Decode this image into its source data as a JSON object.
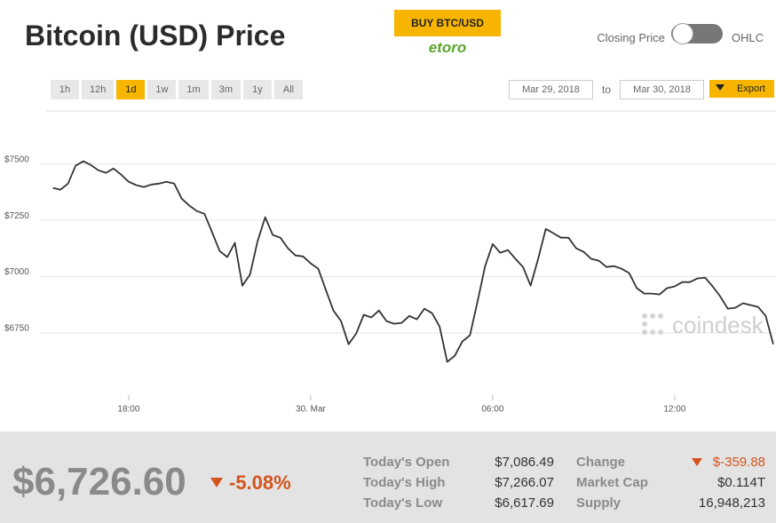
{
  "header": {
    "title": "Bitcoin (USD) Price",
    "buy_button": "BUY BTC/USD",
    "broker": "etoro",
    "toggle_left": "Closing Price",
    "toggle_right": "OHLC"
  },
  "toolbar": {
    "range_buttons": [
      {
        "label": "1h"
      },
      {
        "label": "12h"
      },
      {
        "label": "1d",
        "selected": true
      },
      {
        "label": "1w"
      },
      {
        "label": "1m"
      },
      {
        "label": "3m"
      },
      {
        "label": "1y"
      },
      {
        "label": "All"
      }
    ],
    "date_from": "Mar 29, 2018",
    "date_separator": "to",
    "date_to": "Mar 30, 2018",
    "export": "Export"
  },
  "watermark": "coindesk",
  "chart_data": {
    "type": "line",
    "color": "#333333",
    "grid": true,
    "x": [
      15.5,
      15.75,
      16,
      16.25,
      16.5,
      16.75,
      17,
      17.25,
      17.5,
      17.75,
      18,
      18.25,
      18.5,
      18.75,
      19,
      19.25,
      19.5,
      19.75,
      20,
      20.25,
      20.5,
      20.75,
      21,
      21.25,
      21.5,
      21.75,
      22,
      22.25,
      22.5,
      22.75,
      23,
      23.25,
      23.5,
      23.75,
      24,
      24.25,
      24.5,
      24.75,
      25,
      25.25,
      25.5,
      25.75,
      26,
      26.25,
      26.5,
      26.75,
      27,
      27.25,
      27.5,
      27.75,
      28,
      28.25,
      28.5,
      28.75,
      29,
      29.25,
      29.5,
      29.75,
      30,
      30.25,
      30.5,
      30.75,
      31,
      31.25,
      31.5,
      31.75,
      32,
      32.25,
      32.5,
      32.75,
      33,
      33.25,
      33.5,
      33.75,
      34,
      34.25,
      34.5,
      34.75,
      35,
      35.25,
      35.5,
      35.75,
      36,
      36.25,
      36.5,
      36.75,
      37,
      37.25,
      37.5,
      37.75,
      38,
      38.25,
      38.5,
      38.75,
      39,
      39.25
    ],
    "values": [
      7394,
      7386,
      7413,
      7492,
      7512,
      7496,
      7472,
      7461,
      7480,
      7453,
      7421,
      7406,
      7398,
      7409,
      7413,
      7421,
      7413,
      7346,
      7315,
      7291,
      7279,
      7197,
      7114,
      7087,
      7150,
      6960,
      7010,
      7157,
      7264,
      7185,
      7173,
      7126,
      7094,
      7090,
      7059,
      7035,
      6941,
      6850,
      6803,
      6700,
      6748,
      6831,
      6819,
      6850,
      6803,
      6791,
      6795,
      6826,
      6811,
      6858,
      6838,
      6779,
      6622,
      6649,
      6712,
      6740,
      6889,
      7047,
      7145,
      7106,
      7118,
      7079,
      7043,
      6960,
      7079,
      7212,
      7193,
      7173,
      7173,
      7126,
      7110,
      7079,
      7071,
      7043,
      7047,
      7035,
      7016,
      6949,
      6925,
      6925,
      6921,
      6949,
      6957,
      6976,
      6976,
      6992,
      6996,
      6957,
      6913,
      6858,
      6862,
      6882,
      6874,
      6866,
      6826,
      6700
    ],
    "xlim": [
      15.28,
      39.34
    ],
    "xticks": [
      {
        "value": 18,
        "label": "18:00"
      },
      {
        "value": 24,
        "label": "30. Mar"
      },
      {
        "value": 30,
        "label": "06:00"
      },
      {
        "value": 36,
        "label": "12:00"
      }
    ],
    "ylim": [
      6500,
      7680
    ],
    "yticks": [
      {
        "value": 6750,
        "label": "$6750"
      },
      {
        "value": 7000,
        "label": "$7000"
      },
      {
        "value": 7250,
        "label": "$7250"
      },
      {
        "value": 7500,
        "label": "$7500"
      }
    ]
  },
  "summary": {
    "price": "$6,726.60",
    "change_percent": "-5.08%",
    "stats": [
      {
        "label": "Today's Open",
        "value": "$7,086.49"
      },
      {
        "label": "Today's High",
        "value": "$7,266.07"
      },
      {
        "label": "Today's Low",
        "value": "$6,617.69"
      },
      {
        "label": "Change",
        "value": "$-359.88"
      },
      {
        "label": "Market Cap",
        "value": "$0.114T"
      },
      {
        "label": "Supply",
        "value": "16,948,213"
      }
    ]
  }
}
